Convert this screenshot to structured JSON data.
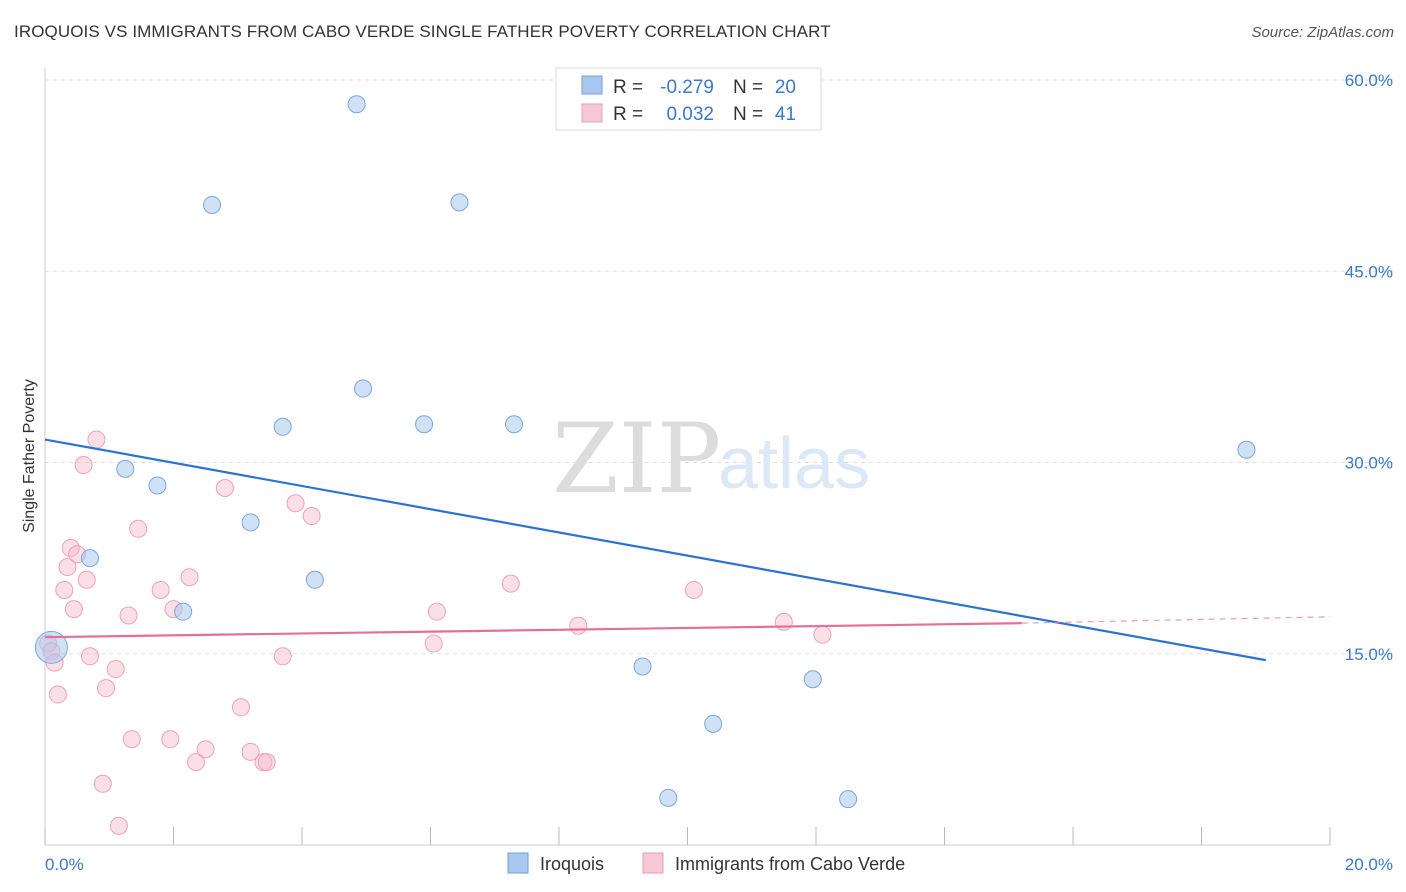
{
  "title": "IROQUOIS VS IMMIGRANTS FROM CABO VERDE SINGLE FATHER POVERTY CORRELATION CHART",
  "source": "Source: ZipAtlas.com",
  "watermark": {
    "part1": "ZIP",
    "part2": "atlas"
  },
  "stats": [
    {
      "r_label": "R =",
      "r_value": "-0.279",
      "n_label": "N =",
      "n_value": "20"
    },
    {
      "r_label": "R =",
      "r_value": "0.032",
      "n_label": "N =",
      "n_value": "41"
    }
  ],
  "legend": [
    {
      "label": "Iroquois"
    },
    {
      "label": "Immigrants from Cabo Verde"
    }
  ],
  "chart_data": {
    "type": "scatter",
    "ylabel": "Single Father Poverty",
    "xlim": [
      0,
      20
    ],
    "ylim": [
      0,
      60
    ],
    "x_tick_labels": [
      "0.0%",
      "20.0%"
    ],
    "y_tick_labels": [
      "15.0%",
      "30.0%",
      "45.0%",
      "60.0%"
    ],
    "y_ticks": [
      15,
      30,
      45,
      60
    ],
    "grid": true,
    "legend_position": "bottom",
    "colors": {
      "iroquois": "#a9c8ef",
      "iroquois_line": "#2b72d3",
      "caboverde": "#f6b8c9",
      "caboverde_line": "#e4709a"
    },
    "series": [
      {
        "name": "Iroquois",
        "points": [
          [
            0.1,
            15.5
          ],
          [
            0.7,
            22.5
          ],
          [
            1.25,
            29.5
          ],
          [
            1.75,
            28.2
          ],
          [
            2.15,
            18.3
          ],
          [
            2.6,
            50.2
          ],
          [
            3.2,
            25.3
          ],
          [
            3.7,
            32.8
          ],
          [
            4.2,
            20.8
          ],
          [
            4.85,
            58.1
          ],
          [
            4.95,
            35.8
          ],
          [
            5.9,
            33.0
          ],
          [
            6.45,
            50.4
          ],
          [
            7.3,
            33.0
          ],
          [
            9.3,
            14.0
          ],
          [
            9.7,
            3.7
          ],
          [
            10.4,
            9.5
          ],
          [
            11.95,
            13.0
          ],
          [
            12.5,
            3.6
          ],
          [
            18.7,
            31.0
          ]
        ],
        "trend": {
          "x": [
            0,
            19.0
          ],
          "y": [
            31.8,
            14.5
          ]
        }
      },
      {
        "name": "Immigrants from Cabo Verde",
        "points": [
          [
            0.05,
            15.8
          ],
          [
            0.1,
            15.2
          ],
          [
            0.15,
            14.3
          ],
          [
            0.2,
            11.8
          ],
          [
            0.3,
            20.0
          ],
          [
            0.35,
            21.8
          ],
          [
            0.4,
            23.3
          ],
          [
            0.45,
            18.5
          ],
          [
            0.5,
            22.8
          ],
          [
            0.6,
            29.8
          ],
          [
            0.65,
            20.8
          ],
          [
            0.7,
            14.8
          ],
          [
            0.8,
            31.8
          ],
          [
            0.9,
            4.8
          ],
          [
            0.95,
            12.3
          ],
          [
            1.1,
            13.8
          ],
          [
            1.15,
            1.5
          ],
          [
            1.3,
            18.0
          ],
          [
            1.35,
            8.3
          ],
          [
            1.45,
            24.8
          ],
          [
            1.8,
            20.0
          ],
          [
            1.95,
            8.3
          ],
          [
            2.0,
            18.5
          ],
          [
            2.25,
            21.0
          ],
          [
            2.35,
            6.5
          ],
          [
            2.5,
            7.5
          ],
          [
            2.8,
            28.0
          ],
          [
            3.05,
            10.8
          ],
          [
            3.2,
            7.3
          ],
          [
            3.4,
            6.5
          ],
          [
            3.45,
            6.5
          ],
          [
            3.7,
            14.8
          ],
          [
            3.9,
            26.8
          ],
          [
            4.15,
            25.8
          ],
          [
            6.05,
            15.8
          ],
          [
            6.1,
            18.3
          ],
          [
            7.25,
            20.5
          ],
          [
            8.3,
            17.2
          ],
          [
            10.1,
            20.0
          ],
          [
            11.5,
            17.5
          ],
          [
            12.1,
            16.5
          ]
        ],
        "trend": {
          "x": [
            0,
            15.2
          ],
          "y": [
            16.3,
            17.4
          ]
        },
        "trend_dashed": {
          "x": [
            15.2,
            20.0
          ],
          "y": [
            17.4,
            17.9
          ]
        }
      }
    ]
  }
}
